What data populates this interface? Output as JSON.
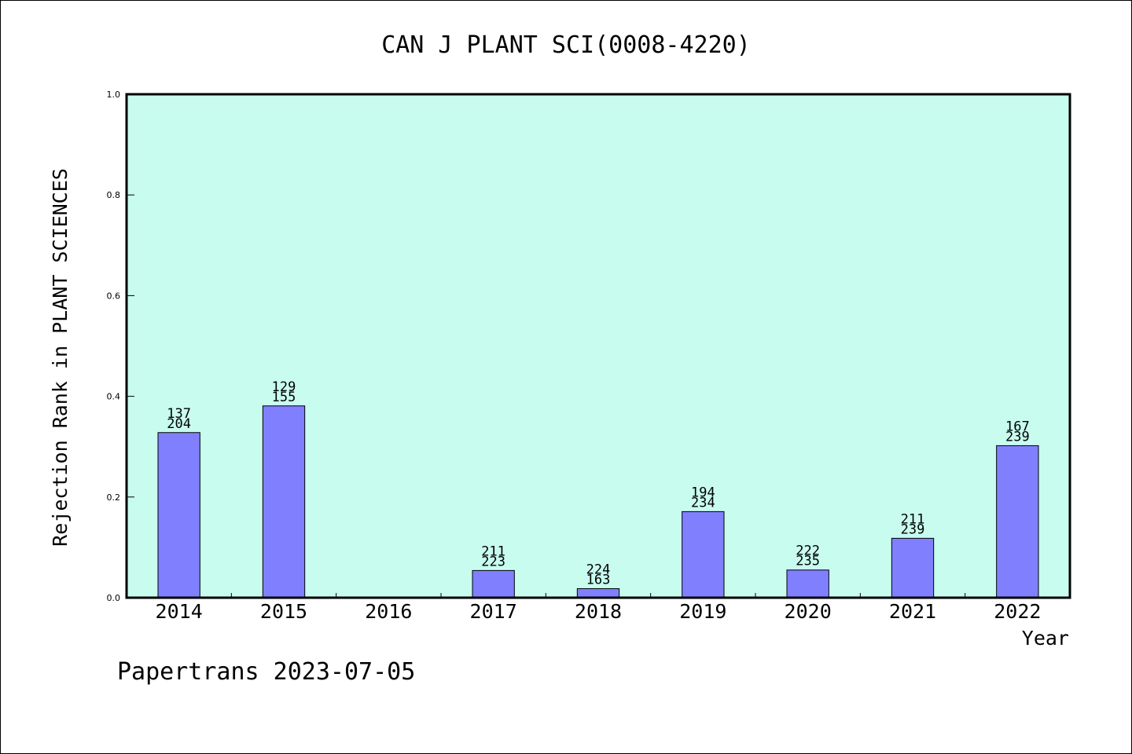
{
  "colors": {
    "background": "#ffffff",
    "plot_area": "#c8fcee",
    "bar_fill": "#8080ff",
    "bar_stroke": "#000000",
    "axis": "#000000"
  },
  "footer_text": "Papertrans 2023-07-05",
  "chart_data": {
    "type": "bar",
    "title": "CAN J PLANT SCI(0008-4220)",
    "xlabel": "Year",
    "ylabel": "Rejection Rank in PLANT SCIENCES",
    "ylim": [
      0.0,
      1.0
    ],
    "yticks": [
      0.0,
      0.2,
      0.4,
      0.6,
      0.8,
      1.0
    ],
    "ytick_labels": [
      "0.0",
      "0.2",
      "0.4",
      "0.6",
      "0.8",
      "1.0"
    ],
    "categories": [
      "2014",
      "2015",
      "2016",
      "2017",
      "2018",
      "2019",
      "2020",
      "2021",
      "2022"
    ],
    "values": [
      0.328,
      0.381,
      null,
      0.054,
      0.018,
      0.171,
      0.055,
      0.118,
      0.302
    ],
    "bar_labels": [
      [
        "137",
        "204"
      ],
      [
        "129",
        "155"
      ],
      null,
      [
        "211",
        "223"
      ],
      [
        "224",
        "163"
      ],
      [
        "194",
        "234"
      ],
      [
        "222",
        "235"
      ],
      [
        "211",
        "239"
      ],
      [
        "167",
        "239"
      ]
    ],
    "grid": false,
    "legend": "none"
  }
}
